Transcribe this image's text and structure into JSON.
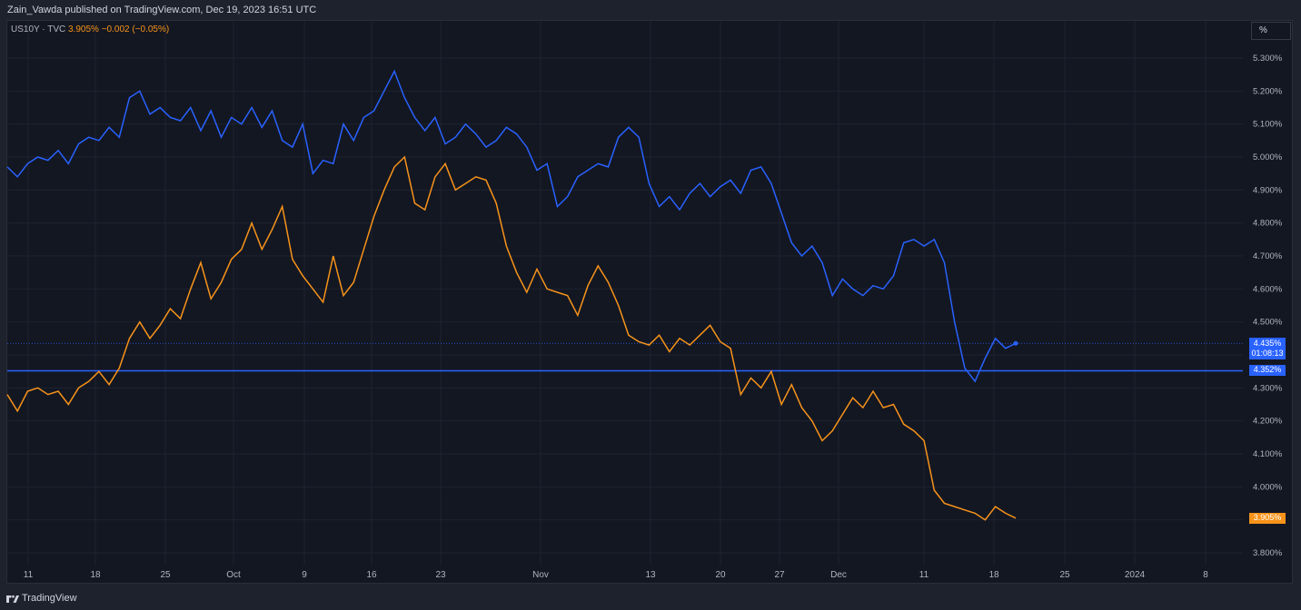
{
  "header": {
    "published_text": "Zain_Vawda published on TradingView.com, Dec 19, 2023 16:51 UTC"
  },
  "legend": {
    "symbol": "US10Y · TVC",
    "value": "3.905%",
    "change": "−0.002 (−0.05%)"
  },
  "unit_label": "%",
  "tags": {
    "blue_last": "4.435%",
    "blue_countdown": "01:08:13",
    "hline": "4.352%",
    "orange_last": "3.905%"
  },
  "footer": {
    "brand": "TradingView",
    "logo_icon": "tradingview-logo-icon"
  },
  "colors": {
    "blue": "#2962ff",
    "orange": "#f7931a",
    "background": "#131722",
    "grid": "#1f2330"
  },
  "chart_data": {
    "type": "line",
    "yaxis_ticks": [
      "5.300%",
      "5.200%",
      "5.100%",
      "5.000%",
      "4.900%",
      "4.800%",
      "4.700%",
      "4.600%",
      "4.500%",
      "4.400%",
      "4.300%",
      "4.200%",
      "4.100%",
      "4.000%",
      "3.900%",
      "3.800%"
    ],
    "ylim": [
      3.78,
      5.32
    ],
    "xaxis_ticks": [
      "11",
      "18",
      "25",
      "Oct",
      "9",
      "16",
      "23",
      "Nov",
      "13",
      "20",
      "27",
      "Dec",
      "11",
      "18",
      "25",
      "2024",
      "8"
    ],
    "grid": true,
    "horizontal_line": 4.352,
    "series": [
      {
        "color": "#2962ff",
        "x": [
          0,
          2,
          4,
          6,
          8,
          10,
          12,
          14,
          16,
          18,
          20,
          22,
          24,
          26,
          28,
          30,
          32,
          34,
          36,
          38,
          40,
          42,
          44,
          46,
          48,
          50,
          52,
          54,
          56,
          58,
          60,
          62,
          64,
          66,
          68,
          70,
          72,
          74,
          76,
          78,
          80,
          82,
          84,
          86,
          88,
          90,
          92,
          94,
          96,
          98,
          100,
          102,
          104,
          106,
          108,
          110,
          112,
          114,
          116,
          118,
          120,
          122,
          124,
          126,
          128,
          130,
          132,
          134,
          136,
          138,
          140,
          142,
          144,
          146,
          148,
          150,
          152,
          154,
          156,
          158,
          160,
          162,
          164,
          166,
          168,
          170,
          172,
          174,
          176,
          178,
          180,
          182,
          184,
          186,
          188,
          190,
          192,
          194,
          196,
          198
        ],
        "values": [
          4.97,
          4.94,
          4.98,
          5.0,
          4.99,
          5.02,
          4.98,
          5.04,
          5.06,
          5.05,
          5.09,
          5.06,
          5.18,
          5.2,
          5.13,
          5.15,
          5.12,
          5.11,
          5.15,
          5.08,
          5.14,
          5.06,
          5.12,
          5.1,
          5.15,
          5.09,
          5.14,
          5.05,
          5.03,
          5.1,
          4.95,
          4.99,
          4.98,
          5.1,
          5.05,
          5.12,
          5.14,
          5.2,
          5.26,
          5.18,
          5.12,
          5.08,
          5.12,
          5.04,
          5.06,
          5.1,
          5.07,
          5.03,
          5.05,
          5.09,
          5.07,
          5.03,
          4.96,
          4.98,
          4.85,
          4.88,
          4.94,
          4.96,
          4.98,
          4.97,
          5.06,
          5.09,
          5.06,
          4.92,
          4.85,
          4.88,
          4.84,
          4.89,
          4.92,
          4.88,
          4.91,
          4.93,
          4.89,
          4.96,
          4.97,
          4.92,
          4.83,
          4.74,
          4.7,
          4.73,
          4.68,
          4.58,
          4.63,
          4.6,
          4.58,
          4.61,
          4.6,
          4.64,
          4.74,
          4.75,
          4.73,
          4.75,
          4.68,
          4.5,
          4.36,
          4.32,
          4.39,
          4.45,
          4.42,
          4.435
        ]
      },
      {
        "color": "#f7931a",
        "x": [
          0,
          2,
          4,
          6,
          8,
          10,
          12,
          14,
          16,
          18,
          20,
          22,
          24,
          26,
          28,
          30,
          32,
          34,
          36,
          38,
          40,
          42,
          44,
          46,
          48,
          50,
          52,
          54,
          56,
          58,
          60,
          62,
          64,
          66,
          68,
          70,
          72,
          74,
          76,
          78,
          80,
          82,
          84,
          86,
          88,
          90,
          92,
          94,
          96,
          98,
          100,
          102,
          104,
          106,
          108,
          110,
          112,
          114,
          116,
          118,
          120,
          122,
          124,
          126,
          128,
          130,
          132,
          134,
          136,
          138,
          140,
          142,
          144,
          146,
          148,
          150,
          152,
          154,
          156,
          158,
          160,
          162,
          164,
          166,
          168,
          170,
          172,
          174,
          176,
          178,
          180,
          182,
          184,
          186,
          188,
          190,
          192,
          194,
          196,
          198
        ],
        "values": [
          4.28,
          4.23,
          4.29,
          4.3,
          4.28,
          4.29,
          4.25,
          4.3,
          4.32,
          4.35,
          4.31,
          4.36,
          4.45,
          4.5,
          4.45,
          4.49,
          4.54,
          4.51,
          4.6,
          4.68,
          4.57,
          4.62,
          4.69,
          4.72,
          4.8,
          4.72,
          4.78,
          4.85,
          4.69,
          4.64,
          4.6,
          4.56,
          4.7,
          4.58,
          4.62,
          4.72,
          4.82,
          4.9,
          4.97,
          5.0,
          4.86,
          4.84,
          4.94,
          4.98,
          4.9,
          4.92,
          4.94,
          4.93,
          4.86,
          4.73,
          4.65,
          4.59,
          4.66,
          4.6,
          4.59,
          4.58,
          4.52,
          4.61,
          4.67,
          4.62,
          4.55,
          4.46,
          4.44,
          4.43,
          4.46,
          4.41,
          4.45,
          4.43,
          4.46,
          4.49,
          4.44,
          4.42,
          4.28,
          4.33,
          4.3,
          4.35,
          4.25,
          4.31,
          4.24,
          4.2,
          4.14,
          4.17,
          4.22,
          4.27,
          4.24,
          4.29,
          4.24,
          4.25,
          4.19,
          4.17,
          4.14,
          3.99,
          3.95,
          3.94,
          3.93,
          3.92,
          3.9,
          3.94,
          3.92,
          3.905
        ]
      }
    ]
  }
}
